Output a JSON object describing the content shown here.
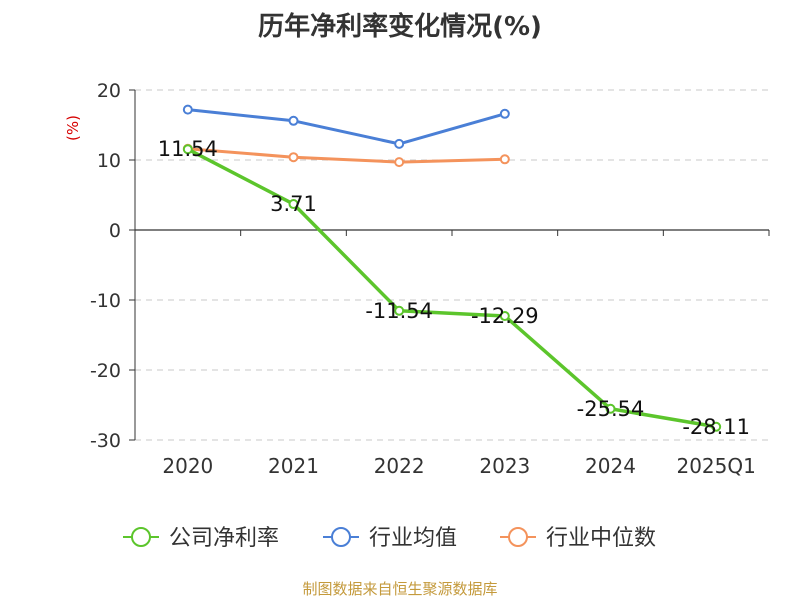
{
  "chart_data": {
    "type": "line",
    "title": "历年净利率变化情况(%)",
    "ylabel": "(%)",
    "xlabel": "",
    "categories": [
      "2020",
      "2021",
      "2022",
      "2023",
      "2024",
      "2025Q1"
    ],
    "ylim": [
      -30,
      20
    ],
    "yticks": [
      -30,
      -20,
      -10,
      0,
      10,
      20
    ],
    "grid": true,
    "legend_position": "bottom",
    "series": [
      {
        "name": "公司净利率",
        "color": "#5cc52c",
        "values": [
          11.54,
          3.71,
          -11.54,
          -12.29,
          -25.54,
          -28.11
        ],
        "labels": [
          "11.54",
          "3.71",
          "-11.54",
          "-12.29",
          "-25.54",
          "-28.11"
        ]
      },
      {
        "name": "行业均值",
        "color": "#4a7fd6",
        "values": [
          17.2,
          15.6,
          12.3,
          16.6,
          null,
          null
        ]
      },
      {
        "name": "行业中位数",
        "color": "#f4935c",
        "values": [
          11.6,
          10.4,
          9.7,
          10.1,
          null,
          null
        ]
      }
    ]
  },
  "source_note": "制图数据来自恒生聚源数据库"
}
